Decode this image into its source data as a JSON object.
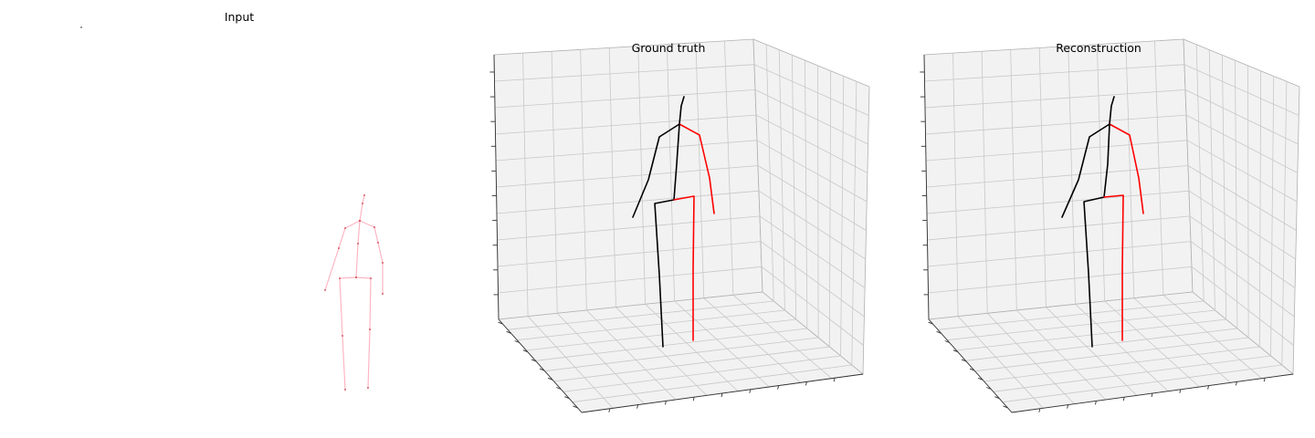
{
  "figure": {
    "panels": [
      {
        "title": "Input"
      },
      {
        "title": "Ground truth"
      },
      {
        "title": "Reconstruction"
      }
    ]
  },
  "colors": {
    "input_skeleton": "#ffb6c1",
    "left_side": "#000000",
    "right_side": "#ff0000",
    "pane_fill": "#f2f2f2",
    "pane_edge": "#b0b0b0",
    "grid": "#c8c8c8",
    "axis_line": "#333333"
  },
  "chart_data": [
    {
      "type": "line",
      "title": "Input",
      "series": [
        {
          "values": [
            [
              399,
              214
            ],
            [
              397,
              223
            ],
            [
              394,
              242
            ],
            [
              378,
              250
            ],
            [
              371,
              272
            ],
            [
              356,
              318
            ]
          ]
        },
        {
          "values": [
            [
              394,
              242
            ],
            [
              410,
              249
            ],
            [
              414,
              266
            ],
            [
              419,
              288
            ],
            [
              419,
              322
            ]
          ]
        },
        {
          "values": [
            [
              394,
              242
            ],
            [
              392,
              267
            ],
            [
              390,
              304
            ],
            [
              372,
              305
            ],
            [
              375,
              368
            ],
            [
              378,
              427
            ]
          ]
        },
        {
          "values": [
            [
              390,
              304
            ],
            [
              406,
              305
            ],
            [
              405,
              361
            ],
            [
              403,
              425
            ]
          ]
        }
      ]
    },
    {
      "type": "line",
      "title": "Ground truth",
      "series": [
        {
          "values": [
            [
              749,
              106
            ],
            [
              746,
              116
            ],
            [
              744,
              136
            ],
            [
              722,
              150
            ],
            [
              710,
              197
            ],
            [
              693,
              238
            ]
          ]
        },
        {
          "values": [
            [
              744,
              136
            ],
            [
              766,
              148
            ],
            [
              777,
              195
            ],
            [
              782,
              234
            ]
          ]
        },
        {
          "values": [
            [
              744,
              136
            ],
            [
              741,
              180
            ],
            [
              738,
              219
            ],
            [
              717,
              223
            ],
            [
              722,
              301
            ],
            [
              726,
              380
            ]
          ]
        },
        {
          "values": [
            [
              738,
              219
            ],
            [
              760,
              215
            ],
            [
              759,
              295
            ],
            [
              759,
              373
            ]
          ]
        }
      ]
    },
    {
      "type": "line",
      "title": "Reconstruction",
      "series": [
        {
          "values": [
            [
              1220,
              106
            ],
            [
              1217,
              116
            ],
            [
              1215,
              136
            ],
            [
              1193,
              150
            ],
            [
              1181,
              197
            ],
            [
              1163,
              238
            ]
          ]
        },
        {
          "values": [
            [
              1215,
              136
            ],
            [
              1237,
              148
            ],
            [
              1247,
              195
            ],
            [
              1252,
              234
            ]
          ]
        },
        {
          "values": [
            [
              1215,
              136
            ],
            [
              1213,
              180
            ],
            [
              1209,
              216
            ],
            [
              1187,
              221
            ],
            [
              1192,
              299
            ],
            [
              1196,
              380
            ]
          ]
        },
        {
          "values": [
            [
              1209,
              216
            ],
            [
              1230,
              214
            ],
            [
              1229,
              295
            ],
            [
              1229,
              373
            ]
          ]
        }
      ]
    }
  ]
}
